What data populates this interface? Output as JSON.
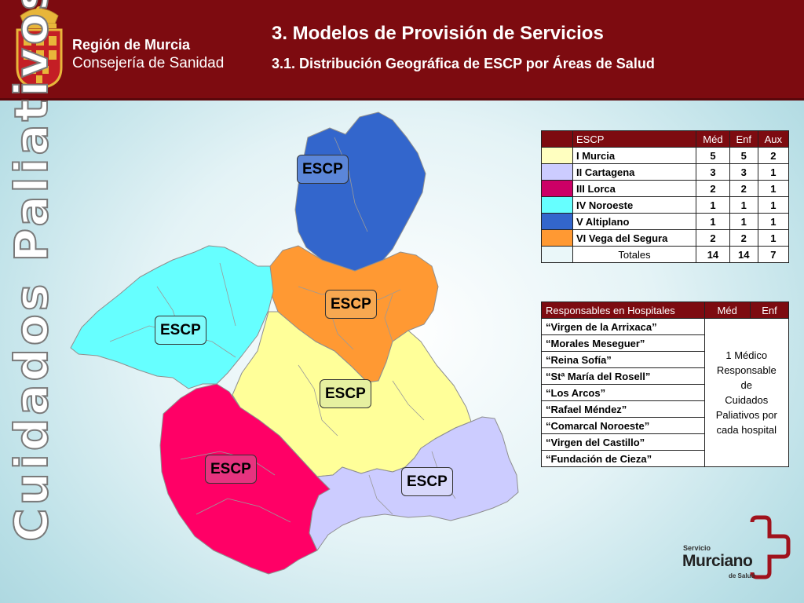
{
  "header": {
    "org_line1": "Región de Murcia",
    "org_line2": "Consejería de Sanidad",
    "title": "3. Modelos de Provisión de Servicios",
    "subtitle": "3.1. Distribución Geográfica de ESCP por Áreas de Salud"
  },
  "vertical_title": "Cuidados Paliativos",
  "map": {
    "labels": {
      "altiplano": "ESCP",
      "vega": "ESCP",
      "noroeste": "ESCP",
      "murcia": "ESCP",
      "lorca": "ESCP",
      "cartagena": "ESCP"
    },
    "colors": {
      "murcia": "#ffff99",
      "cartagena": "#ccccff",
      "lorca": "#ff0066",
      "noroeste": "#66ffff",
      "altiplano": "#3366cc",
      "vega": "#ff9933"
    }
  },
  "escp_table": {
    "headers": [
      "ESCP",
      "Méd",
      "Enf",
      "Aux"
    ],
    "rows": [
      {
        "color": "#ffffc0",
        "name": "I Murcia",
        "med": "5",
        "enf": "5",
        "aux": "2"
      },
      {
        "color": "#ccccff",
        "name": "II Cartagena",
        "med": "3",
        "enf": "3",
        "aux": "1"
      },
      {
        "color": "#cc0066",
        "name": "III Lorca",
        "med": "2",
        "enf": "2",
        "aux": "1"
      },
      {
        "color": "#66ffff",
        "name": "IV Noroeste",
        "med": "1",
        "enf": "1",
        "aux": "1"
      },
      {
        "color": "#3366cc",
        "name": "V Altiplano",
        "med": "1",
        "enf": "1",
        "aux": "1"
      },
      {
        "color": "#ff9933",
        "name": "VI Vega del Segura",
        "med": "2",
        "enf": "2",
        "aux": "1"
      }
    ],
    "totals": {
      "label": "Totales",
      "med": "14",
      "enf": "14",
      "aux": "7"
    }
  },
  "hospital_table": {
    "headers": [
      "Responsables en Hospitales",
      "Méd",
      "Enf"
    ],
    "hospitals": [
      "“Virgen de la Arrixaca”",
      "“Morales Meseguer”",
      "“Reina Sofía”",
      "“Stª María del Rosell”",
      "“Los Arcos”",
      "“Rafael Méndez”",
      "“Comarcal Noroeste”",
      "“Virgen del Castillo”",
      "“Fundación de Cieza”"
    ],
    "responsible_lines": [
      "1 Médico",
      "Responsable",
      "de",
      "Cuidados",
      "Paliativos por",
      "cada hospital"
    ]
  },
  "logo": {
    "line1": "Servicio",
    "line2": "Murciano",
    "line3": "de Salud",
    "color": "#a0121c"
  }
}
